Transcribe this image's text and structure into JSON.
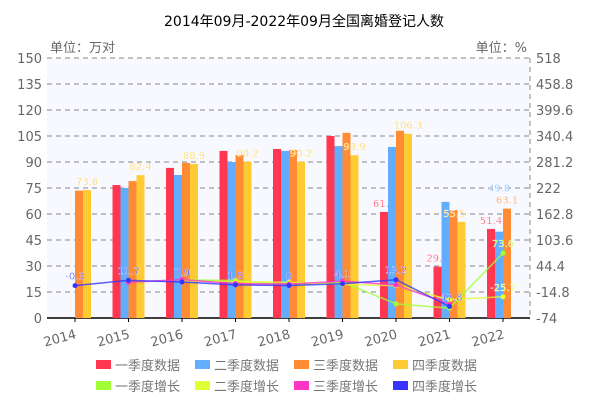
{
  "chart_data": {
    "type": "bar",
    "title": "2014年09月-2022年09月全国离婚登记人数",
    "left_unit": "单位：万对",
    "right_unit": "单位：%",
    "categories": [
      "2014",
      "2015",
      "2016",
      "2017",
      "2018",
      "2019",
      "2020",
      "2021",
      "2022"
    ],
    "left_axis": {
      "min": 0,
      "max": 150,
      "ticks": [
        "0",
        "15",
        "30",
        "45",
        "60",
        "75",
        "90",
        "105",
        "120",
        "135",
        "150"
      ]
    },
    "right_axis": {
      "min": -74,
      "max": 518,
      "ticks": [
        "-74",
        "-14.8",
        "44.4",
        "103.6",
        "162.8",
        "222",
        "281.2",
        "340.4",
        "399.6",
        "458.8",
        "518"
      ]
    },
    "grid": true,
    "legend_position": "bottom",
    "bar_series": [
      {
        "name": "一季度数据",
        "color": "#ff3750",
        "values": [
          null,
          76.7,
          86.6,
          96.4,
          97.5,
          105.0,
          61.2,
          29.6,
          51.4
        ],
        "labels": {
          "6": "61.2",
          "7": "29.6",
          "8": "51.4"
        }
      },
      {
        "name": "二季度数据",
        "color": "#63adff",
        "values": [
          null,
          75.0,
          82.5,
          90.0,
          96.4,
          99.2,
          98.7,
          67.0,
          49.8
        ],
        "labels": {
          "8": "49.8"
        }
      },
      {
        "name": "三季度数据",
        "color": "#ff8c35",
        "values": [
          73.5,
          79.0,
          89.5,
          94.0,
          97.0,
          106.8,
          108.0,
          62.3,
          63.1
        ],
        "labels": {
          "8": "63.1"
        }
      },
      {
        "name": "四季度数据",
        "color": "#ffcb35",
        "values": [
          73.8,
          82.4,
          88.9,
          90.2,
          90.2,
          93.9,
          106.3,
          55.5,
          null
        ],
        "labels": {
          "0": "73.8",
          "1": "82.4",
          "2": "88.9",
          "3": "90.2",
          "4": "90.2",
          "5": "93.9",
          "6": "106.3",
          "7": "55.5"
        }
      }
    ],
    "line_series": [
      {
        "name": "一季度增长",
        "color": "#a0ff35",
        "values": [
          null,
          null,
          12.9,
          11.3,
          1.1,
          7.7,
          -41.7,
          -51.6,
          73.6
        ],
        "labels": {
          "8": "73.6"
        }
      },
      {
        "name": "二季度增长",
        "color": "#e0ff35",
        "values": [
          null,
          null,
          10.0,
          9.1,
          7.1,
          2.9,
          -0.5,
          -32.1,
          -25.7
        ],
        "labels": {
          "8": "-25.7"
        }
      },
      {
        "name": "三季度增长",
        "color": "#ff35c8",
        "values": [
          null,
          7.5,
          13.3,
          4.4,
          3.2,
          10.1,
          1.1,
          -42.3,
          null
        ],
        "labels": {}
      },
      {
        "name": "四季度增长",
        "color": "#3535ff",
        "values": [
          -0.3,
          11.7,
          7.9,
          1.5,
          0,
          4.1,
          13.2,
          -47.8,
          null
        ],
        "labels": {
          "0": "-0.3",
          "1": "11.7",
          "2": "7.9",
          "3": "1.5",
          "4": "0",
          "5": "4.1",
          "6": "13.2",
          "7": "-47.8"
        }
      }
    ]
  }
}
